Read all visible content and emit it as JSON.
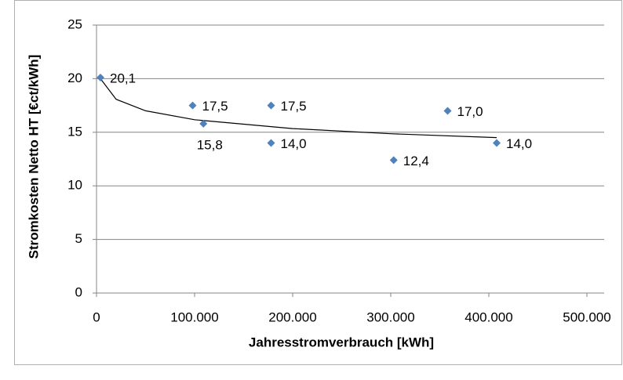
{
  "chart_data": {
    "type": "scatter",
    "x_label": "Jahresstromverbrauch [kWh]",
    "y_label": "Stromkosten Netto HT [€ct/kWh]",
    "x": [
      4000,
      98000,
      109000,
      178000,
      178000,
      303000,
      358000,
      408000
    ],
    "values": [
      20.1,
      17.5,
      15.8,
      17.5,
      14.0,
      12.4,
      17.0,
      14.0
    ],
    "value_labels": [
      "20,1",
      "17,5",
      "15,8",
      "17,5",
      "14,0",
      "12,4",
      "17,0",
      "14,0"
    ],
    "color": "#4f81bd",
    "trendline": {
      "x": [
        4000,
        20000,
        50000,
        100000,
        200000,
        300000,
        408000
      ],
      "values": [
        20.0,
        18.08,
        17.0,
        16.17,
        15.34,
        14.86,
        14.5
      ]
    },
    "xlim": [
      0,
      500000
    ],
    "ylim": [
      0,
      25
    ],
    "xticks": [
      0,
      {
        "value": 100000,
        "label": "100.000"
      },
      {
        "value": 200000,
        "label": "200.000"
      },
      {
        "value": 300000,
        "label": "300.000"
      },
      {
        "value": 400000,
        "label": "400.000"
      },
      {
        "value": 500000,
        "label": "500.000"
      }
    ],
    "yticks": [
      0,
      5,
      10,
      15,
      20,
      25
    ],
    "grid": true
  }
}
